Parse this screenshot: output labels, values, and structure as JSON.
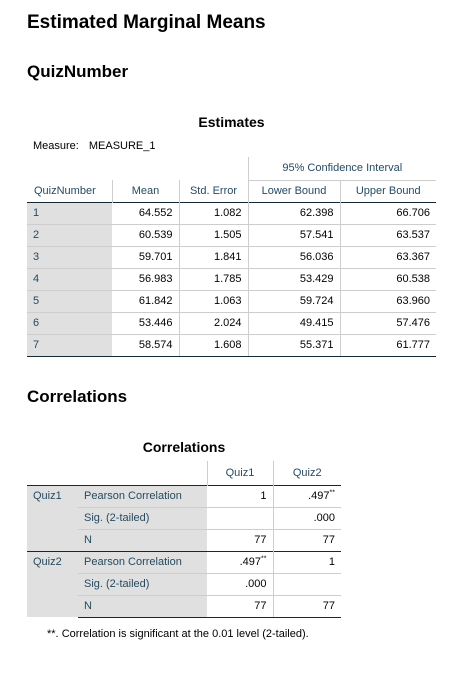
{
  "page": {
    "heading": "Estimated Marginal Means",
    "section1": "QuizNumber",
    "section2": "Correlations"
  },
  "estimates": {
    "title": "Estimates",
    "measure_label": "Measure:",
    "measure_value": "MEASURE_1",
    "ci_header": "95% Confidence Interval",
    "columns": [
      "QuizNumber",
      "Mean",
      "Std. Error",
      "Lower Bound",
      "Upper Bound"
    ],
    "rows": [
      [
        "1",
        "64.552",
        "1.082",
        "62.398",
        "66.706"
      ],
      [
        "2",
        "60.539",
        "1.505",
        "57.541",
        "63.537"
      ],
      [
        "3",
        "59.701",
        "1.841",
        "56.036",
        "63.367"
      ],
      [
        "4",
        "56.983",
        "1.785",
        "53.429",
        "60.538"
      ],
      [
        "5",
        "61.842",
        "1.063",
        "59.724",
        "63.960"
      ],
      [
        "6",
        "53.446",
        "2.024",
        "49.415",
        "57.476"
      ],
      [
        "7",
        "58.574",
        "1.608",
        "55.371",
        "61.777"
      ]
    ]
  },
  "correlations": {
    "title": "Correlations",
    "columns": [
      "Quiz1",
      "Quiz2"
    ],
    "groups": [
      {
        "name": "Quiz1",
        "rows": [
          {
            "stat": "Pearson Correlation",
            "quiz1": "1",
            "quiz2": ".497",
            "quiz2_sup": "**",
            "quiz1_sup": ""
          },
          {
            "stat": "Sig. (2-tailed)",
            "quiz1": "",
            "quiz2": ".000",
            "quiz2_sup": "",
            "quiz1_sup": ""
          },
          {
            "stat": "N",
            "quiz1": "77",
            "quiz2": "77",
            "quiz2_sup": "",
            "quiz1_sup": ""
          }
        ]
      },
      {
        "name": "Quiz2",
        "rows": [
          {
            "stat": "Pearson Correlation",
            "quiz1": ".497",
            "quiz1_sup": "**",
            "quiz2": "1",
            "quiz2_sup": ""
          },
          {
            "stat": "Sig. (2-tailed)",
            "quiz1": ".000",
            "quiz1_sup": "",
            "quiz2": "",
            "quiz2_sup": ""
          },
          {
            "stat": "N",
            "quiz1": "77",
            "quiz1_sup": "",
            "quiz2": "77",
            "quiz2_sup": ""
          }
        ]
      }
    ],
    "footnote_marker": "**.",
    "footnote_text": "Correlation is significant at the 0.01 level (2-tailed)."
  }
}
